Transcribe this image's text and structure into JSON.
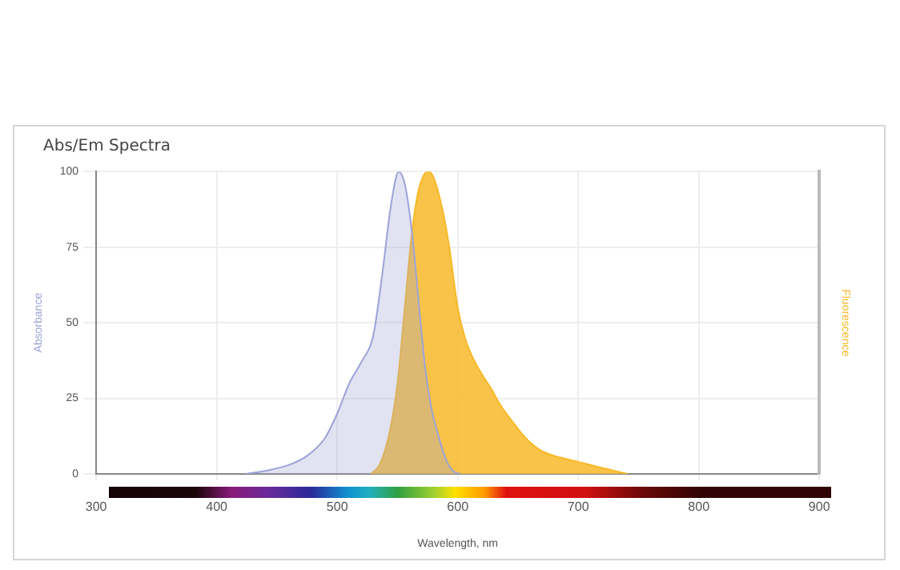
{
  "chart_data": {
    "type": "area",
    "title": "Abs/Em Spectra",
    "xlabel": "Wavelength, nm",
    "ylabel": "Absorbance",
    "y2label": "Fluorescence",
    "xlim": [
      300,
      900
    ],
    "xticks": [
      300,
      400,
      500,
      600,
      700,
      800,
      900
    ],
    "ylim": [
      0,
      100
    ],
    "yticks": [
      0,
      25,
      50,
      75,
      100
    ],
    "grid": true,
    "legend": false,
    "marker": "none",
    "series": [
      {
        "color": "#9da3d8",
        "x": [
          424,
          440,
          460,
          475,
          490,
          500,
          510,
          520,
          530,
          537,
          545,
          551,
          556,
          562,
          568,
          573,
          578,
          583,
          590,
          596,
          602
        ],
        "values": [
          0,
          1,
          3,
          6,
          12,
          20,
          30,
          37,
          46,
          65,
          90,
          100,
          96,
          80,
          55,
          35,
          22,
          14,
          5,
          1,
          0
        ]
      },
      {
        "color": "#f7b928",
        "x": [
          528,
          535,
          543,
          550,
          556,
          562,
          567,
          572,
          576,
          580,
          587,
          593,
          600,
          606,
          613,
          620,
          628,
          635,
          646,
          656,
          668,
          680,
          690,
          710,
          725,
          741
        ],
        "values": [
          0,
          3,
          13,
          30,
          55,
          80,
          93,
          99,
          100,
          98,
          88,
          75,
          55,
          45,
          38,
          33,
          28,
          23,
          17,
          12,
          8,
          6,
          5,
          3,
          1.5,
          0
        ]
      }
    ]
  }
}
